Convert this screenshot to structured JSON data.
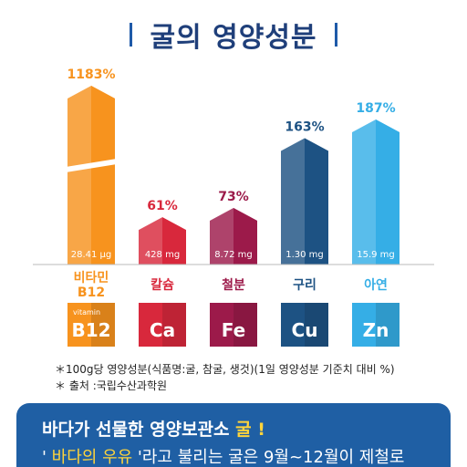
{
  "title": "굴의 영양성분",
  "chart_data": {
    "type": "bar",
    "categories": [
      "비타민 B12",
      "칼슘",
      "철분",
      "구리",
      "아연"
    ],
    "values": [
      1183,
      61,
      73,
      163,
      187
    ],
    "value_labels": [
      "1183%",
      "61%",
      "73%",
      "163%",
      "187%"
    ],
    "amounts": [
      "28.41 μg",
      "428 mg",
      "8.72 mg",
      "1.30 mg",
      "15.9 mg"
    ],
    "name_lines": [
      [
        "비타민",
        "B12"
      ],
      [
        "칼슘"
      ],
      [
        "철분"
      ],
      [
        "구리"
      ],
      [
        "아연"
      ]
    ],
    "symbols": [
      "B12",
      "Ca",
      "Fe",
      "Cu",
      "Zn"
    ],
    "symbol_prefix": [
      "vitamin",
      "",
      "",
      "",
      ""
    ],
    "colors": [
      "#f7931e",
      "#d8283c",
      "#9c1a4a",
      "#1d5283",
      "#35aee6"
    ],
    "label_colors": [
      "#f7931e",
      "#d8283c",
      "#9c1a4a",
      "#1d5283",
      "#35aee6"
    ],
    "axis_broken": true
  },
  "notes": [
    "＊100g당  영양성분(식품명:굴, 참굴, 생것)(1일 영양성분 기준치 대비 %)",
    "＊ 출처 :국립수산과학원"
  ],
  "banner": {
    "line1_pre": "바다가 선물한 영양보관소 ",
    "line1_hl": "굴 !",
    "line2_pre": "' ",
    "line2_hl": "바다의 우유",
    "line2_post": " '라고 불리는 굴은 9월~12월이 제철로"
  }
}
